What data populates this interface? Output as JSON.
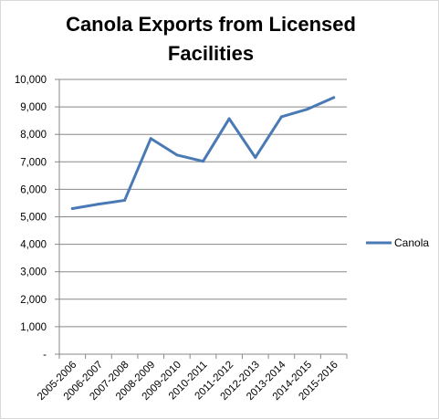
{
  "chart_data": {
    "type": "line",
    "title": "Canola Exports from Licensed Facilities",
    "categories": [
      "2005-2006",
      "2006-2007",
      "2007-2008",
      "2008-2009",
      "2009-2010",
      "2010-2011",
      "2011-2012",
      "2012-2013",
      "2013-2014",
      "2014-2015",
      "2015-2016"
    ],
    "series": [
      {
        "name": "Canola",
        "color": "#4a7ab5",
        "values": [
          5300,
          5460,
          5600,
          7850,
          7250,
          7020,
          8570,
          7160,
          8640,
          8920,
          9340
        ]
      }
    ],
    "ylim": [
      0,
      10000
    ],
    "yticks": [
      {
        "value": 0,
        "label": "-"
      },
      {
        "value": 1000,
        "label": "1,000"
      },
      {
        "value": 2000,
        "label": "2,000"
      },
      {
        "value": 3000,
        "label": "3,000"
      },
      {
        "value": 4000,
        "label": "4,000"
      },
      {
        "value": 5000,
        "label": "5,000"
      },
      {
        "value": 6000,
        "label": "6,000"
      },
      {
        "value": 7000,
        "label": "7,000"
      },
      {
        "value": 8000,
        "label": "8,000"
      },
      {
        "value": 9000,
        "label": "9,000"
      },
      {
        "value": 10000,
        "label": "10,000"
      }
    ],
    "grid": true,
    "legend_position": "right",
    "xlabel": "",
    "ylabel": ""
  },
  "colors": {
    "gridline": "#888888",
    "axis": "#888888"
  }
}
